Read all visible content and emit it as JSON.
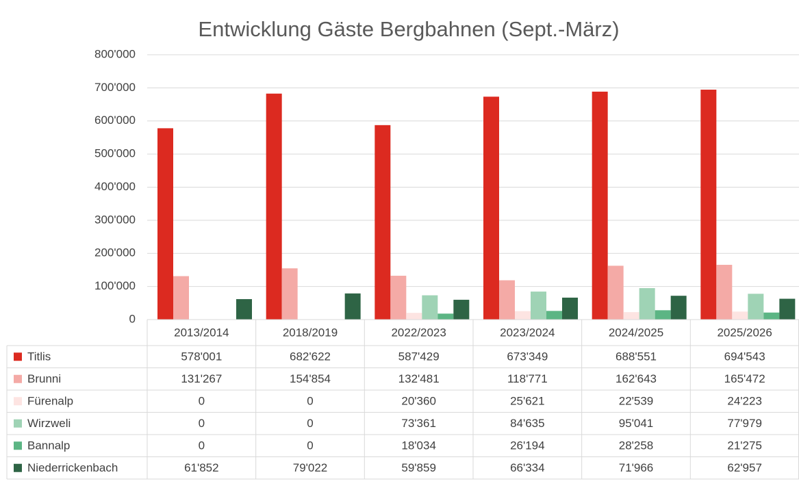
{
  "chart_data": {
    "type": "bar",
    "title": "Entwicklung Gäste Bergbahnen (Sept.-März)",
    "categories": [
      "2013/2014",
      "2018/2019",
      "2022/2023",
      "2023/2024",
      "2024/2025",
      "2025/2026"
    ],
    "series": [
      {
        "name": "Titlis",
        "color": "#dc2a20",
        "values": [
          578001,
          682622,
          587429,
          673349,
          688551,
          694543
        ],
        "value_labels": [
          "578'001",
          "682'622",
          "587'429",
          "673'349",
          "688'551",
          "694'543"
        ]
      },
      {
        "name": "Brunni",
        "color": "#f4aaa6",
        "values": [
          131267,
          154854,
          132481,
          118771,
          162643,
          165472
        ],
        "value_labels": [
          "131'267",
          "154'854",
          "132'481",
          "118'771",
          "162'643",
          "165'472"
        ]
      },
      {
        "name": "Fürenalp",
        "color": "#fde4e2",
        "values": [
          0,
          0,
          20360,
          25621,
          22539,
          24223
        ],
        "value_labels": [
          "0",
          "0",
          "20'360",
          "25'621",
          "22'539",
          "24'223"
        ]
      },
      {
        "name": "Wirzweli",
        "color": "#9fd3b5",
        "values": [
          0,
          0,
          73361,
          84635,
          95041,
          77979
        ],
        "value_labels": [
          "0",
          "0",
          "73'361",
          "84'635",
          "95'041",
          "77'979"
        ]
      },
      {
        "name": "Bannalp",
        "color": "#5cb584",
        "values": [
          0,
          0,
          18034,
          26194,
          28258,
          21275
        ],
        "value_labels": [
          "0",
          "0",
          "18'034",
          "26'194",
          "28'258",
          "21'275"
        ]
      },
      {
        "name": "Niederrickenbach",
        "color": "#2e6445",
        "values": [
          61852,
          79022,
          59859,
          66334,
          71966,
          62957
        ],
        "value_labels": [
          "61'852",
          "79'022",
          "59'859",
          "66'334",
          "71'966",
          "62'957"
        ]
      }
    ],
    "ylim": [
      0,
      800000
    ],
    "yticks": [
      0,
      {
        "value": 100000,
        "label": "100'000"
      },
      {
        "value": 200000,
        "label": "200'000"
      },
      {
        "value": 300000,
        "label": "300'000"
      },
      {
        "value": 400000,
        "label": "400'000"
      },
      {
        "value": 500000,
        "label": "500'000"
      },
      {
        "value": 600000,
        "label": "600'000"
      },
      {
        "value": 700000,
        "label": "700'000"
      },
      {
        "value": 800000,
        "label": "800'000"
      }
    ],
    "grid": true
  }
}
